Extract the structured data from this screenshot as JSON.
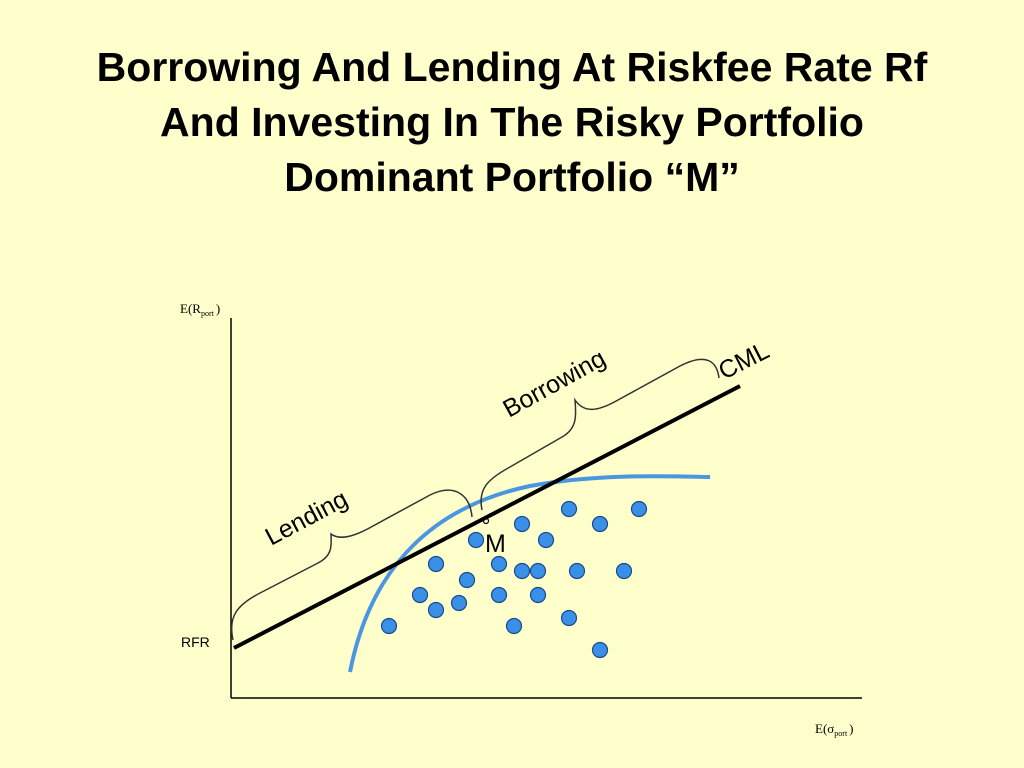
{
  "title": {
    "line1": "Borrowing And Lending At Riskfee Rate Rf",
    "line2": "And Investing In The Risky Portfolio",
    "line3": "Dominant Portfolio “M”"
  },
  "diagram": {
    "y_axis_label": {
      "main": "E(R",
      "sub": "port",
      "close": ")"
    },
    "x_axis_label": {
      "main": "E(σ",
      "sub": "port",
      "close": ")"
    },
    "rfr_label": "RFR",
    "cml_label": "CML",
    "lending_label": "Lending",
    "borrowing_label": "Borrowing",
    "m_label": "M",
    "colors": {
      "background": "#ffffcc",
      "dot_fill": "#3a8fe6",
      "dot_stroke": "#1a4a8a",
      "frontier": "#4a96e0",
      "line": "#000000"
    },
    "portfolio_count": 25
  }
}
